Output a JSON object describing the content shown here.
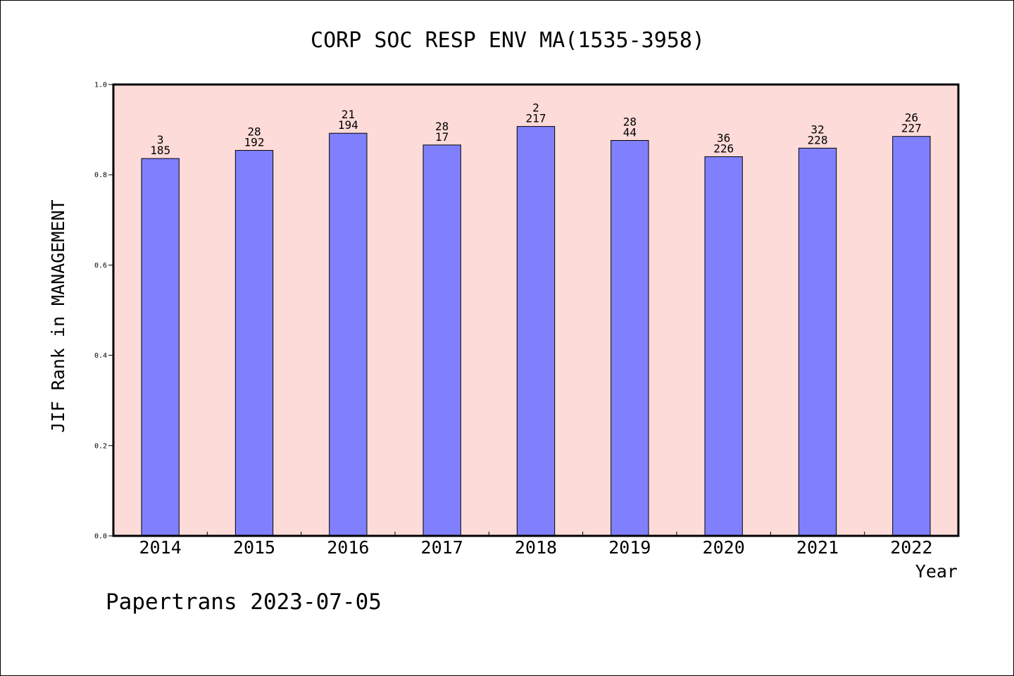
{
  "chart_data": {
    "type": "bar",
    "title": "CORP SOC RESP ENV MA(1535-3958)",
    "xlabel": "Year",
    "ylabel": "JIF Rank in MANAGEMENT",
    "ylim": [
      0,
      1.0
    ],
    "yticks": [
      "0.0",
      "0.2",
      "0.4",
      "0.6",
      "0.8",
      "1.0"
    ],
    "grid": false,
    "background_color": "#fddbd8",
    "bar_color": "#8080ff",
    "categories": [
      "2014",
      "2015",
      "2016",
      "2017",
      "2018",
      "2019",
      "2020",
      "2021",
      "2022"
    ],
    "values": [
      0.836,
      0.854,
      0.892,
      0.866,
      0.907,
      0.876,
      0.84,
      0.859,
      0.885
    ],
    "label_top": [
      "3",
      "28",
      "21",
      "28",
      "2",
      "28",
      "36",
      "32",
      "26"
    ],
    "label_bottom": [
      "185",
      "192",
      "194",
      "17",
      "217",
      "44",
      "226",
      "228",
      "227"
    ]
  },
  "footer": {
    "text": "Papertrans 2023-07-05"
  }
}
